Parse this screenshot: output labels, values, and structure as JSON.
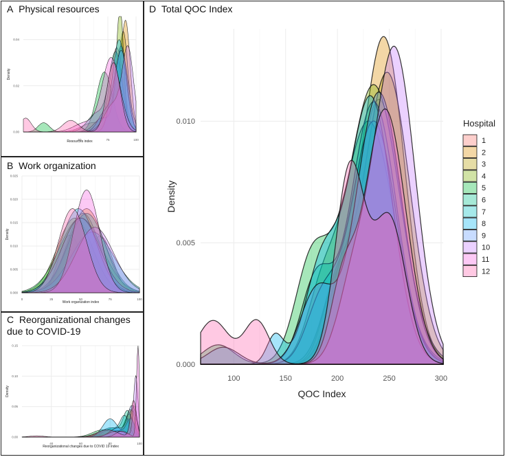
{
  "panels": {
    "a": {
      "letter": "A",
      "title": "Physical resources"
    },
    "b": {
      "letter": "B",
      "title": "Work organization"
    },
    "c": {
      "letter": "C",
      "title_line1": "Reorganizational changes",
      "title_line2": "due to COVID-19"
    },
    "d": {
      "letter": "D",
      "title": "Total QOC Index"
    }
  },
  "hospital_colors": [
    "#f8766d",
    "#de8c00",
    "#b79f00",
    "#7cae00",
    "#00ba38",
    "#00c08b",
    "#00bfc4",
    "#00b4f0",
    "#619cff",
    "#c77cff",
    "#f564e3",
    "#ff64b0"
  ],
  "chart_data": [
    {
      "id": "a",
      "type": "area",
      "title": "Physical resources",
      "xlabel": "Resources index",
      "ylabel": "Density",
      "xlim": [
        0,
        100
      ],
      "ylim": [
        0,
        0.05
      ],
      "xticks": [
        50,
        75,
        100
      ],
      "xtick_labels": [
        "50",
        "75",
        "100"
      ],
      "yticks": [
        0,
        0.02,
        0.04
      ],
      "ytick_labels": [
        "0.00",
        "0.02",
        "0.04"
      ],
      "grid": true,
      "series": [
        {
          "name": "1",
          "peaks": [
            [
              83,
              6,
              0.036
            ],
            [
              62,
              10,
              0.004
            ]
          ]
        },
        {
          "name": "2",
          "peaks": [
            [
              91,
              4,
              0.043
            ],
            [
              82,
              7,
              0.012
            ]
          ]
        },
        {
          "name": "3",
          "peaks": [
            [
              89,
              4,
              0.037
            ],
            [
              80,
              8,
              0.012
            ]
          ]
        },
        {
          "name": "4",
          "peaks": [
            [
              86,
              3,
              0.047
            ],
            [
              78,
              8,
              0.012
            ]
          ]
        },
        {
          "name": "5",
          "peaks": [
            [
              72,
              7,
              0.026
            ],
            [
              18,
              5,
              0.004
            ]
          ]
        },
        {
          "name": "6",
          "peaks": [
            [
              82,
              6,
              0.034
            ],
            [
              65,
              8,
              0.008
            ]
          ]
        },
        {
          "name": "7",
          "peaks": [
            [
              87,
              5,
              0.037
            ],
            [
              70,
              7,
              0.006
            ]
          ]
        },
        {
          "name": "8",
          "peaks": [
            [
              85,
              6,
              0.04
            ]
          ]
        },
        {
          "name": "9",
          "peaks": [
            [
              87,
              6,
              0.035
            ],
            [
              72,
              6,
              0.008
            ]
          ]
        },
        {
          "name": "10",
          "peaks": [
            [
              93,
              5,
              0.034
            ],
            [
              80,
              8,
              0.012
            ]
          ]
        },
        {
          "name": "11",
          "peaks": [
            [
              78,
              8,
              0.032
            ],
            [
              55,
              10,
              0.004
            ]
          ]
        },
        {
          "name": "12",
          "peaks": [
            [
              80,
              6,
              0.03
            ],
            [
              2,
              5,
              0.006
            ],
            [
              42,
              7,
              0.005
            ]
          ]
        }
      ]
    },
    {
      "id": "b",
      "type": "area",
      "title": "Work organization",
      "xlabel": "Work organization index",
      "ylabel": "Density",
      "xlim": [
        0,
        100
      ],
      "ylim": [
        0,
        0.025
      ],
      "xticks": [
        0,
        25,
        50,
        75,
        100
      ],
      "xtick_labels": [
        "0",
        "25",
        "50",
        "75",
        "100"
      ],
      "yticks": [
        0,
        0.005,
        0.01,
        0.015,
        0.02,
        0.025
      ],
      "ytick_labels": [
        "0.000",
        "0.005",
        "0.010",
        "0.015",
        "0.020",
        "0.025"
      ],
      "grid": true,
      "series": [
        {
          "name": "1",
          "peaks": [
            [
              40,
              9,
              0.012
            ],
            [
              67,
              10,
              0.012
            ]
          ]
        },
        {
          "name": "2",
          "peaks": [
            [
              55,
              15,
              0.018
            ]
          ]
        },
        {
          "name": "3",
          "peaks": [
            [
              52,
              14,
              0.017
            ]
          ]
        },
        {
          "name": "4",
          "peaks": [
            [
              45,
              15,
              0.016
            ]
          ]
        },
        {
          "name": "5",
          "peaks": [
            [
              50,
              18,
              0.016
            ]
          ]
        },
        {
          "name": "6",
          "peaks": [
            [
              55,
              16,
              0.017
            ]
          ]
        },
        {
          "name": "7",
          "peaks": [
            [
              60,
              18,
              0.013
            ]
          ]
        },
        {
          "name": "8",
          "peaks": [
            [
              48,
              15,
              0.018
            ]
          ]
        },
        {
          "name": "9",
          "peaks": [
            [
              50,
              16,
              0.016
            ]
          ]
        },
        {
          "name": "10",
          "peaks": [
            [
              62,
              16,
              0.014
            ]
          ]
        },
        {
          "name": "11",
          "peaks": [
            [
              55,
              11,
              0.022
            ]
          ]
        },
        {
          "name": "12",
          "peaks": [
            [
              43,
              12,
              0.018
            ]
          ]
        }
      ]
    },
    {
      "id": "c",
      "type": "area",
      "title": "Reorganizational changes due to COVID-19",
      "xlabel": "Reorganizational changes due to COVID 19 index",
      "ylabel": "Density",
      "xlim": [
        20,
        100
      ],
      "ylim": [
        0,
        0.15
      ],
      "xticks": [
        40,
        60,
        80,
        100
      ],
      "xtick_labels": [
        "40",
        "60",
        "80",
        "100"
      ],
      "yticks": [
        0,
        0.05,
        0.1,
        0.15
      ],
      "ytick_labels": [
        "0.00",
        "0.05",
        "0.10",
        "0.15"
      ],
      "grid": true,
      "series": [
        {
          "name": "1",
          "peaks": [
            [
              96,
              2,
              0.05
            ],
            [
              80,
              8,
              0.012
            ]
          ]
        },
        {
          "name": "2",
          "peaks": [
            [
              95,
              3,
              0.04
            ],
            [
              85,
              8,
              0.01
            ]
          ]
        },
        {
          "name": "3",
          "peaks": [
            [
              94,
              3,
              0.04
            ],
            [
              85,
              8,
              0.01
            ]
          ]
        },
        {
          "name": "4",
          "peaks": [
            [
              93,
              3,
              0.035
            ],
            [
              80,
              8,
              0.01
            ]
          ]
        },
        {
          "name": "5",
          "peaks": [
            [
              92,
              3,
              0.03
            ],
            [
              75,
              7,
              0.012
            ]
          ]
        },
        {
          "name": "6",
          "peaks": [
            [
              92,
              3,
              0.04
            ],
            [
              82,
              6,
              0.015
            ]
          ]
        },
        {
          "name": "7",
          "peaks": [
            [
              90,
              3,
              0.032
            ],
            [
              80,
              6,
              0.015
            ]
          ]
        },
        {
          "name": "8",
          "peaks": [
            [
              94,
              3,
              0.03
            ],
            [
              80,
              5,
              0.03
            ]
          ]
        },
        {
          "name": "9",
          "peaks": [
            [
              95,
              3,
              0.05
            ],
            [
              85,
              5,
              0.015
            ]
          ]
        },
        {
          "name": "10",
          "peaks": [
            [
              97.5,
              1.5,
              0.1
            ],
            [
              85,
              6,
              0.01
            ]
          ]
        },
        {
          "name": "11",
          "peaks": [
            [
              99,
              1,
              0.15
            ],
            [
              88,
              4,
              0.01
            ]
          ]
        },
        {
          "name": "12",
          "peaks": [
            [
              96,
              2,
              0.06
            ],
            [
              78,
              7,
              0.012
            ],
            [
              30,
              5,
              0.002
            ]
          ]
        }
      ]
    },
    {
      "id": "d",
      "type": "area",
      "title": "Total QOC Index",
      "xlabel": "QOC Index",
      "ylabel": "Density",
      "legend_title": "Hospital",
      "legend": "right",
      "xlim": [
        68,
        302
      ],
      "ylim": [
        0,
        0.0138
      ],
      "xticks": [
        100,
        150,
        200,
        250,
        300
      ],
      "xtick_labels": [
        "100",
        "150",
        "200",
        "250",
        "300"
      ],
      "yticks": [
        0,
        0.005,
        0.01
      ],
      "ytick_labels": [
        "0.000",
        "0.005",
        "0.010"
      ],
      "grid": true,
      "series": [
        {
          "name": "1",
          "peaks": [
            [
              240,
              22,
              0.0109
            ],
            [
              195,
              12,
              0.002
            ]
          ]
        },
        {
          "name": "2",
          "peaks": [
            [
              245,
              20,
              0.0134
            ],
            [
              205,
              15,
              0.003
            ]
          ]
        },
        {
          "name": "3",
          "peaks": [
            [
              248,
              22,
              0.012
            ],
            [
              200,
              15,
              0.003
            ]
          ]
        },
        {
          "name": "4",
          "peaks": [
            [
              235,
              25,
              0.0115
            ],
            [
              185,
              15,
              0.0025
            ]
          ]
        },
        {
          "name": "5",
          "peaks": [
            [
              230,
              25,
              0.01
            ],
            [
              175,
              16,
              0.004
            ],
            [
              85,
              15,
              0.0008
            ]
          ]
        },
        {
          "name": "6",
          "peaks": [
            [
              235,
              22,
              0.0108
            ],
            [
              180,
              15,
              0.0035
            ]
          ]
        },
        {
          "name": "7",
          "peaks": [
            [
              235,
              22,
              0.01
            ],
            [
              185,
              15,
              0.0025
            ]
          ]
        },
        {
          "name": "8",
          "peaks": [
            [
              232,
              21,
              0.011
            ],
            [
              185,
              16,
              0.004
            ],
            [
              140,
              8,
              0.0012
            ]
          ]
        },
        {
          "name": "9",
          "peaks": [
            [
              240,
              22,
              0.0112
            ],
            [
              180,
              16,
              0.003
            ],
            [
              90,
              15,
              0.0007
            ]
          ]
        },
        {
          "name": "10",
          "peaks": [
            [
              255,
              20,
              0.013
            ],
            [
              215,
              15,
              0.003
            ]
          ]
        },
        {
          "name": "11",
          "peaks": [
            [
              246,
              20,
              0.0105
            ],
            [
              205,
              12,
              0.003
            ]
          ]
        },
        {
          "name": "12",
          "peaks": [
            [
              212,
              14,
              0.008
            ],
            [
              250,
              16,
              0.006
            ],
            [
              80,
              15,
              0.0018
            ],
            [
              122,
              12,
              0.0018
            ]
          ]
        }
      ]
    }
  ]
}
